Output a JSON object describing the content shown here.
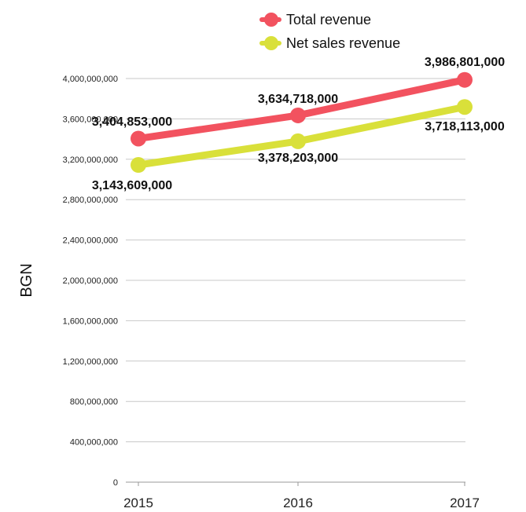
{
  "chart_data": {
    "type": "line",
    "title": "",
    "xlabel": "",
    "ylabel": "BGN",
    "x": [
      "2015",
      "2016",
      "2017"
    ],
    "ylim": [
      0,
      4000000000
    ],
    "yticks": [
      "0",
      "400,000,000",
      "800,000,000",
      "1,200,000,000",
      "1,600,000,000",
      "2,000,000,000",
      "2,400,000,000",
      "2,800,000,000",
      "3,200,000,000",
      "3,600,000,000",
      "4,000,000,000"
    ],
    "grid": true,
    "legend_position": "top-right",
    "series": [
      {
        "name": "Total revenue",
        "color": "#f2525f",
        "values": [
          3404853000,
          3634718000,
          3986801000
        ],
        "labels": [
          "3,404,853,000",
          "3,634,718,000",
          "3,986,801,000"
        ]
      },
      {
        "name": "Net sales revenue",
        "color": "#d9e03a",
        "values": [
          3143609000,
          3378203000,
          3718113000
        ],
        "labels": [
          "3,143,609,000",
          "3,378,203,000",
          "3,718,113,000"
        ]
      }
    ]
  }
}
